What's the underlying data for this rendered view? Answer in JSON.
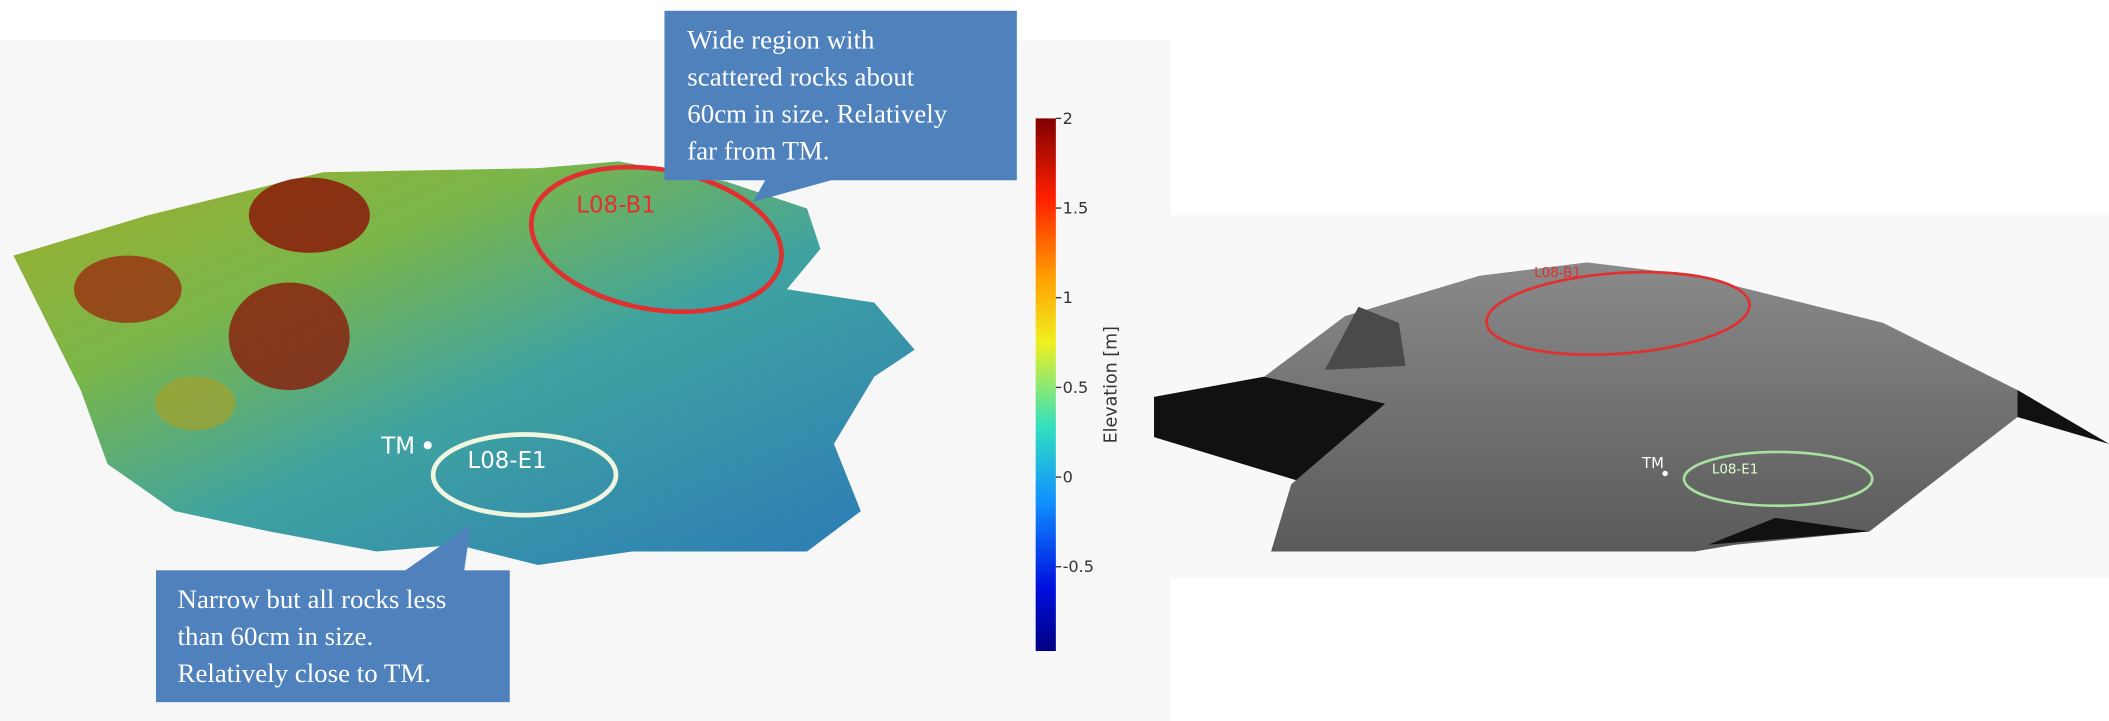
{
  "left_panel": {
    "callout_top": {
      "lines": [
        "Wide region with",
        "scattered rocks about",
        "60cm in size. Relatively",
        "far from TM."
      ]
    },
    "callout_bottom": {
      "lines": [
        "Narrow but all rocks less",
        "than 60cm in size.",
        "Relatively close to TM."
      ]
    },
    "site_b": "L08-B1",
    "site_e": "L08-E1",
    "tm": "TM",
    "colorbar": {
      "label": "Elevation [m]",
      "lim": [
        -0.97,
        2
      ],
      "ticks": [
        2,
        1.5,
        1,
        0.5,
        0,
        -0.5
      ]
    }
  },
  "right_panel": {
    "site_b": "L08-B1",
    "site_e": "L08-E1",
    "tm": "TM"
  }
}
